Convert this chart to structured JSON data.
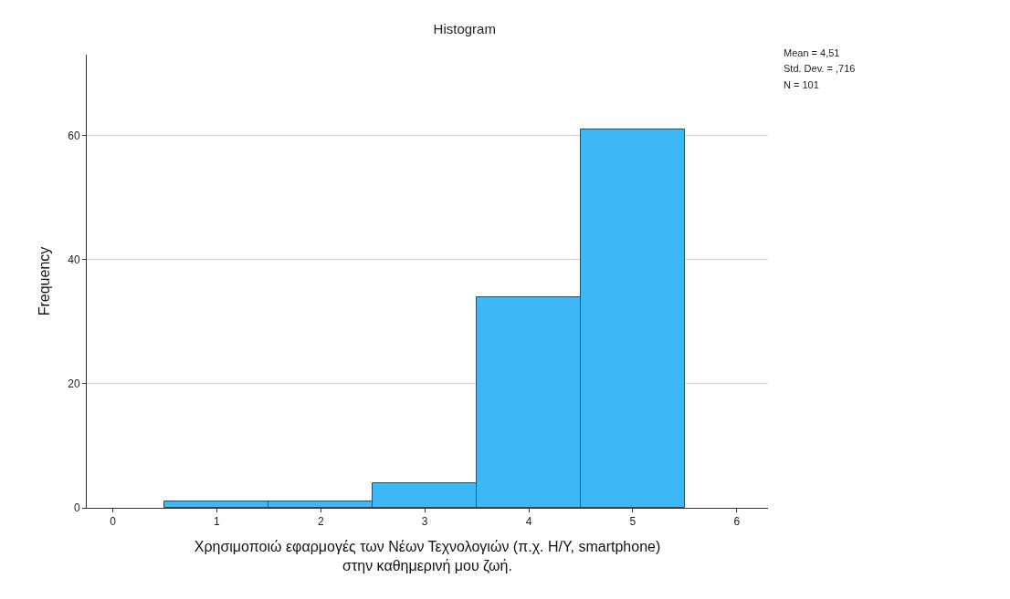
{
  "chart_data": {
    "type": "histogram",
    "title": "Histogram",
    "xlabel": "Χρησιμοποιώ εφαρμογές των Νέων Τεχνολογιών (π.χ. Η/Υ, smartphone)\nστην καθημερινή μου ζωή.",
    "ylabel": "Frequency",
    "bins": [
      0.5,
      1.5,
      2.5,
      3.5,
      4.5,
      5.5
    ],
    "values": [
      1,
      1,
      4,
      34,
      61
    ],
    "color": "#3eb7f7",
    "xlim": [
      -0.25,
      6.3
    ],
    "xticks": [
      0,
      1,
      2,
      3,
      4,
      5,
      6
    ],
    "ylim": [
      0,
      73
    ],
    "yticks": [
      0,
      20,
      40,
      60
    ],
    "grid": "y",
    "annotations": [
      "Mean = 4,51",
      "Std. Dev. = ,716",
      "N = 101"
    ]
  }
}
